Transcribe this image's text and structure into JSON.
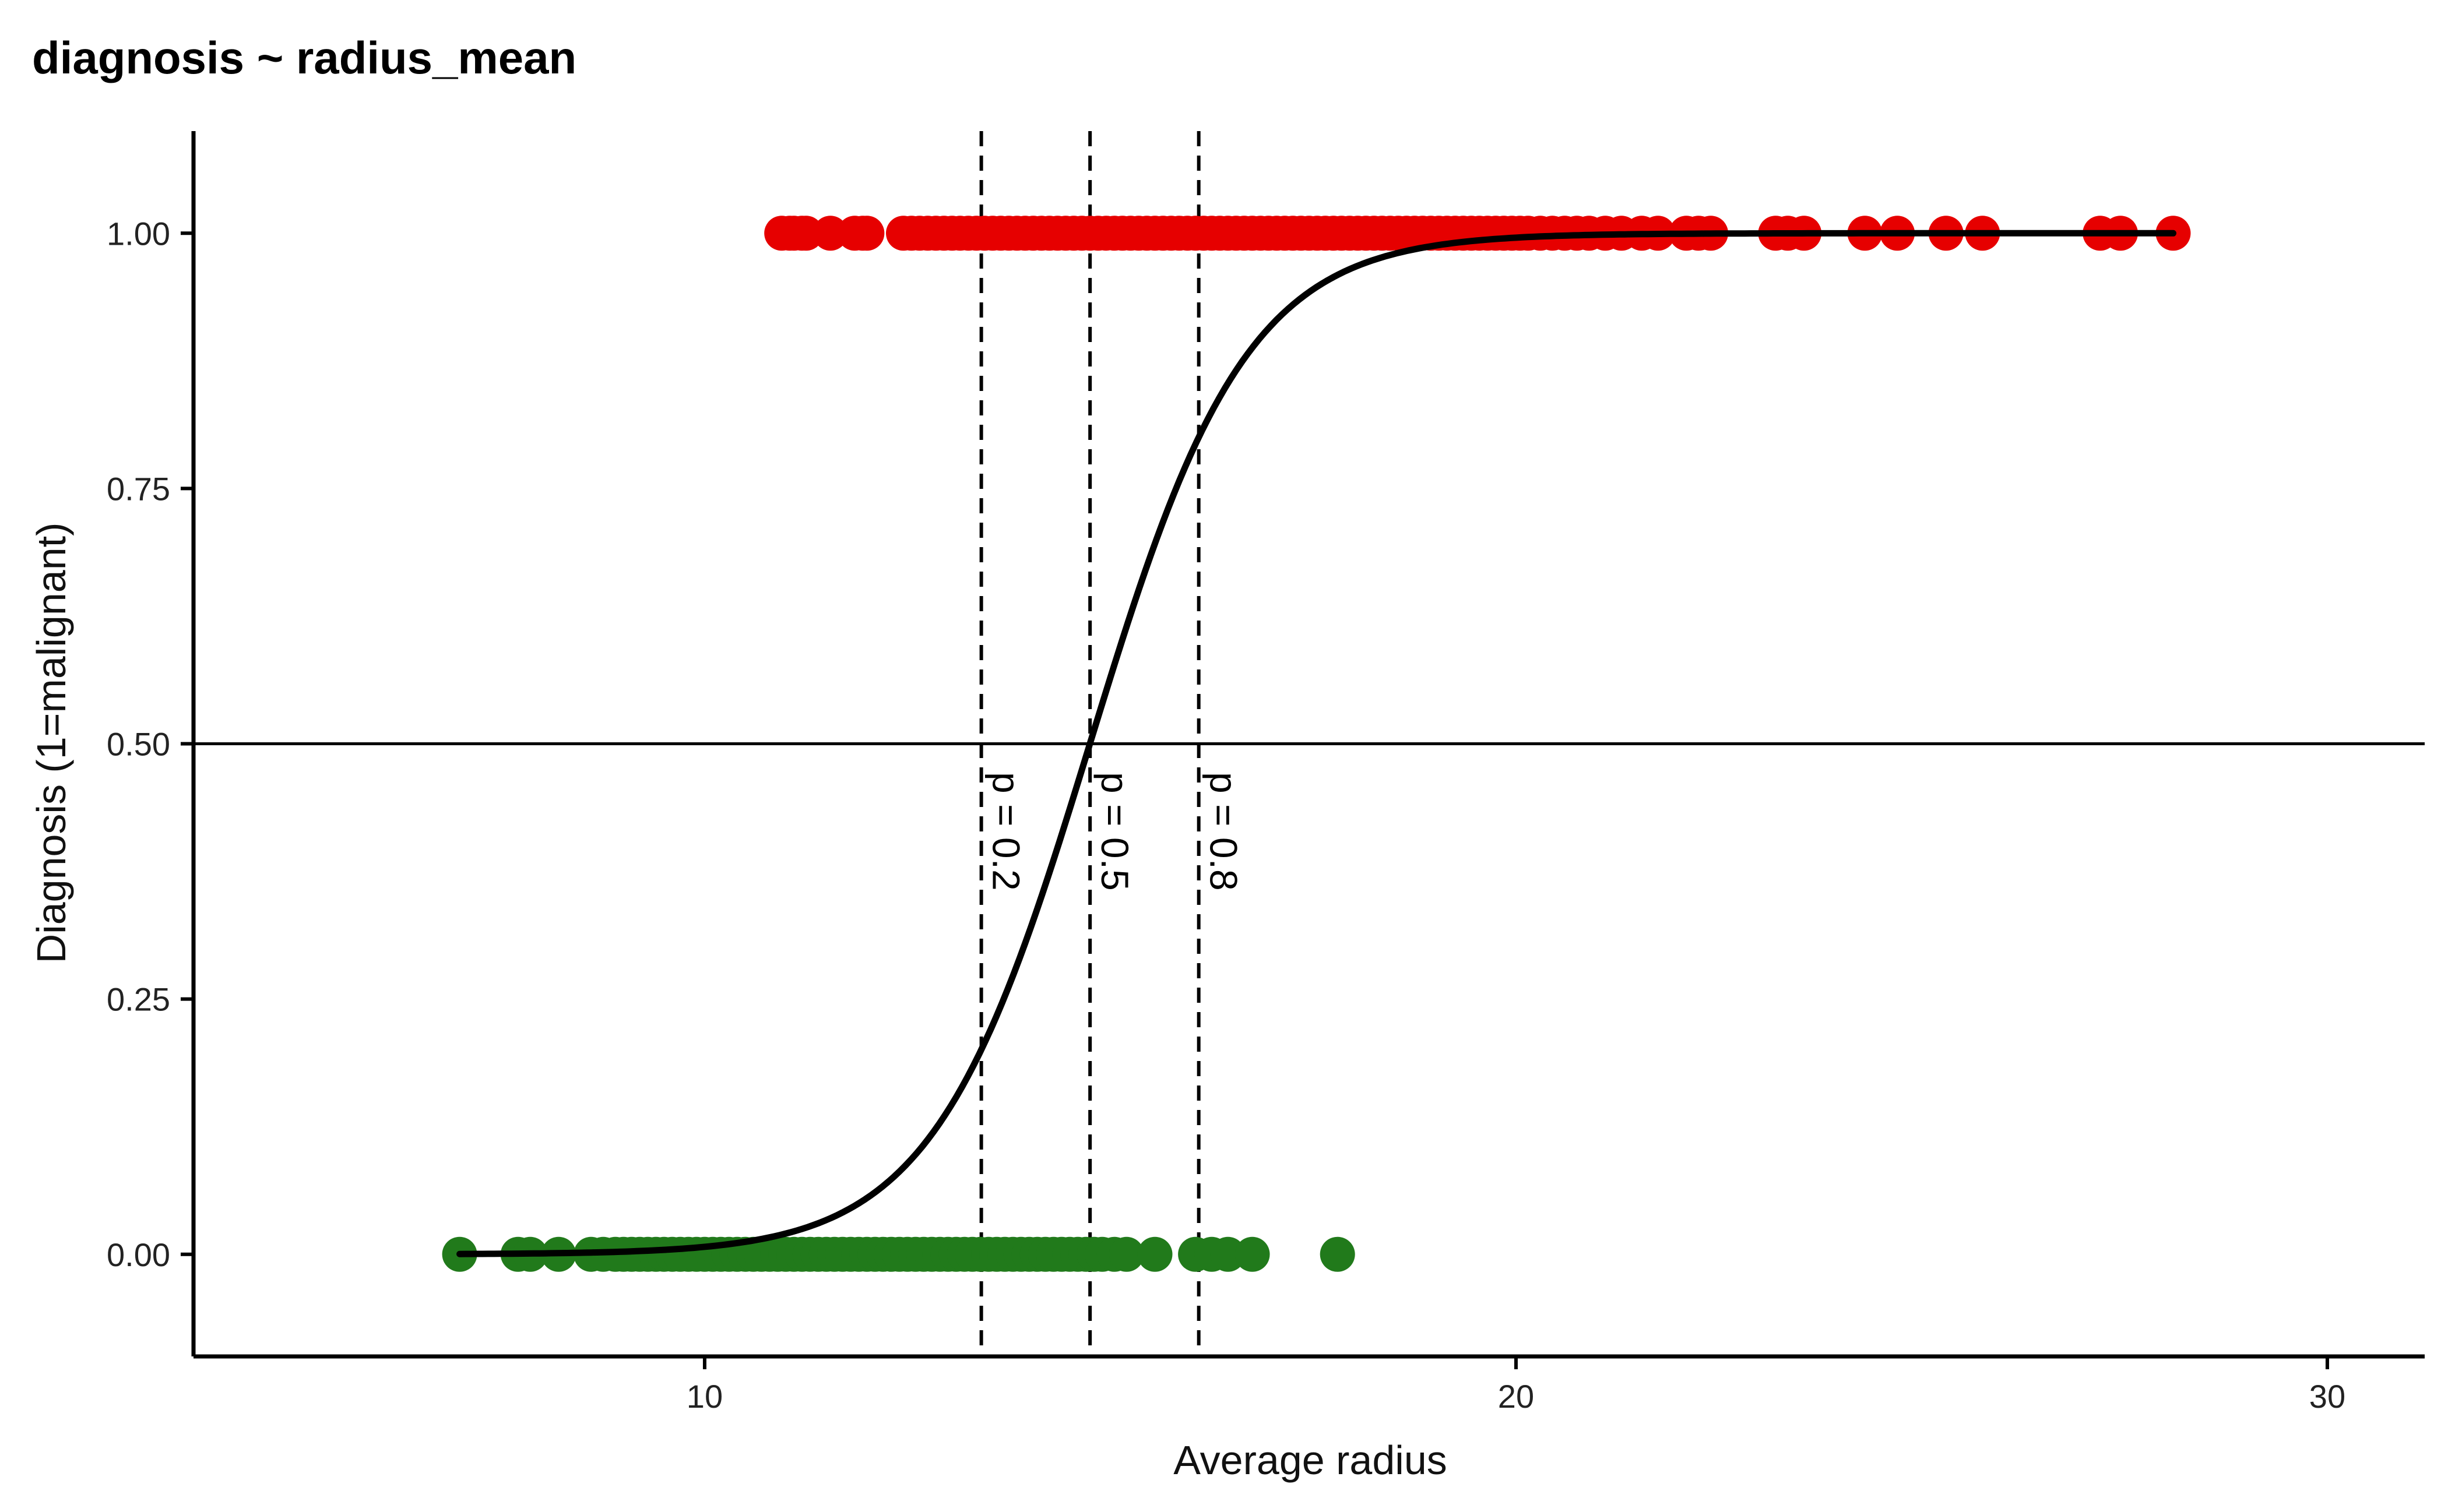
{
  "chart_data": {
    "type": "scatter",
    "title": "diagnosis ~ radius_mean",
    "xlabel": "Average radius",
    "ylabel": "Diagnosis (1=malignant)",
    "xlim": [
      3.7,
      31.2
    ],
    "ylim": [
      -0.1,
      1.1
    ],
    "x_ticks": [
      10,
      20,
      30
    ],
    "y_ticks": [
      0,
      0.25,
      0.5,
      0.75,
      1
    ],
    "y_tick_labels": [
      "0.00",
      "0.25",
      "0.50",
      "0.75",
      "1.00"
    ],
    "grid": false,
    "legend": "none",
    "series": [
      {
        "color": "#e60000",
        "y": 1,
        "x": [
          10.95,
          11.05,
          11.1,
          11.2,
          11.25,
          11.55,
          11.85,
          11.95,
          12.0,
          12.45,
          12.55,
          12.65,
          12.75,
          12.85,
          12.95,
          13.05,
          13.15,
          13.25,
          13.35,
          13.45,
          13.55,
          13.65,
          13.75,
          13.85,
          13.95,
          14.05,
          14.15,
          14.25,
          14.35,
          14.45,
          14.55,
          14.65,
          14.75,
          14.85,
          14.95,
          15.05,
          15.15,
          15.25,
          15.35,
          15.45,
          15.55,
          15.65,
          15.75,
          15.85,
          15.95,
          16.05,
          16.15,
          16.25,
          16.35,
          16.45,
          16.55,
          16.65,
          16.75,
          16.85,
          16.95,
          17.05,
          17.15,
          17.25,
          17.35,
          17.45,
          17.55,
          17.65,
          17.75,
          17.85,
          17.95,
          18.05,
          18.15,
          18.25,
          18.35,
          18.45,
          18.55,
          18.65,
          18.75,
          18.85,
          18.95,
          19.05,
          19.15,
          19.25,
          19.35,
          19.45,
          19.55,
          19.65,
          19.75,
          19.85,
          19.95,
          20.05,
          20.15,
          20.3,
          20.45,
          20.6,
          20.75,
          20.9,
          21.1,
          21.3,
          21.55,
          21.75,
          22.1,
          22.25,
          22.4,
          23.2,
          23.35,
          23.55,
          24.3,
          24.7,
          25.3,
          25.75,
          27.2,
          27.45,
          28.1
        ]
      },
      {
        "color": "#217a1b",
        "y": 0,
        "x": [
          6.98,
          7.7,
          7.85,
          8.2,
          8.6,
          8.75,
          8.9,
          9.0,
          9.1,
          9.2,
          9.3,
          9.4,
          9.5,
          9.6,
          9.7,
          9.8,
          9.9,
          10.0,
          10.1,
          10.2,
          10.3,
          10.4,
          10.5,
          10.6,
          10.7,
          10.8,
          10.9,
          11.0,
          11.1,
          11.2,
          11.3,
          11.4,
          11.5,
          11.6,
          11.7,
          11.8,
          11.9,
          12.0,
          12.1,
          12.2,
          12.3,
          12.4,
          12.5,
          12.6,
          12.7,
          12.8,
          12.9,
          13.0,
          13.1,
          13.2,
          13.3,
          13.4,
          13.5,
          13.6,
          13.7,
          13.8,
          13.9,
          14.0,
          14.1,
          14.2,
          14.3,
          14.4,
          14.5,
          14.6,
          14.7,
          14.8,
          14.9,
          15.05,
          15.2,
          15.55,
          16.05,
          16.25,
          16.45,
          16.75,
          17.8
        ]
      }
    ],
    "fit_curve": {
      "type": "logistic",
      "intercept": -15.25,
      "slope": 1.034,
      "x_range": [
        6.98,
        28.1
      ]
    },
    "hline": {
      "y": 0.5
    },
    "vlines": [
      {
        "x": 13.41,
        "label": "p = 0.2"
      },
      {
        "x": 14.75,
        "label": "p = 0.5"
      },
      {
        "x": 16.09,
        "label": "p = 0.8"
      }
    ]
  }
}
